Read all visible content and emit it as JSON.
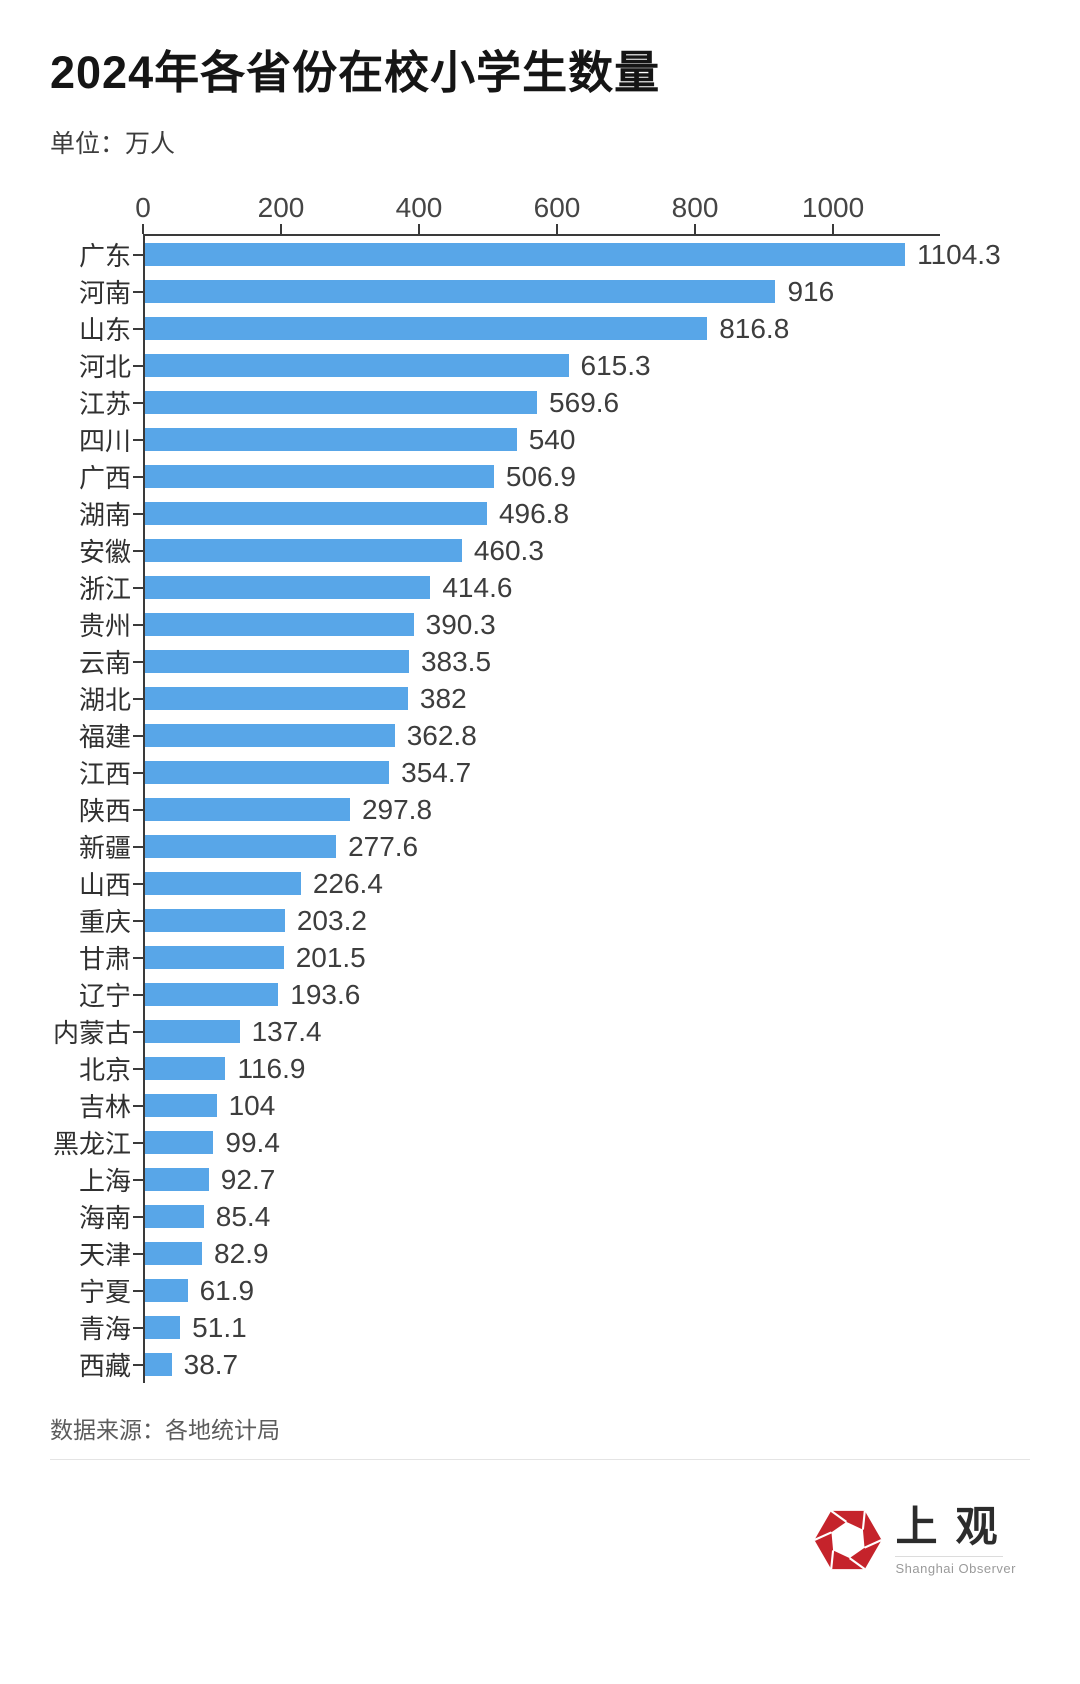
{
  "header": {
    "title": "2024年各省份在校小学生数量",
    "unit_label": "单位：万人"
  },
  "chart_data": {
    "type": "bar",
    "orientation": "horizontal",
    "title": "2024年各省份在校小学生数量",
    "unit": "万人",
    "xlabel": "",
    "ylabel": "",
    "xlim": [
      0,
      1155
    ],
    "x_ticks": [
      0,
      200,
      400,
      600,
      800,
      1000
    ],
    "grid": false,
    "legend": "none",
    "bar_color": "#58a6e8",
    "axis_color": "#3a3a3a",
    "categories": [
      "广东",
      "河南",
      "山东",
      "河北",
      "江苏",
      "四川",
      "广西",
      "湖南",
      "安徽",
      "浙江",
      "贵州",
      "云南",
      "湖北",
      "福建",
      "江西",
      "陕西",
      "新疆",
      "山西",
      "重庆",
      "甘肃",
      "辽宁",
      "内蒙古",
      "北京",
      "吉林",
      "黑龙江",
      "上海",
      "海南",
      "天津",
      "宁夏",
      "青海",
      "西藏"
    ],
    "values": [
      1104.3,
      916,
      816.8,
      615.3,
      569.6,
      540,
      506.9,
      496.8,
      460.3,
      414.6,
      390.3,
      383.5,
      382,
      362.8,
      354.7,
      297.8,
      277.6,
      226.4,
      203.2,
      201.5,
      193.6,
      137.4,
      116.9,
      104,
      99.4,
      92.7,
      85.4,
      82.9,
      61.9,
      51.1,
      38.7
    ],
    "value_labels": [
      "1104.3",
      "916",
      "816.8",
      "615.3",
      "569.6",
      "540",
      "506.9",
      "496.8",
      "460.3",
      "414.6",
      "390.3",
      "383.5",
      "382",
      "362.8",
      "354.7",
      "297.8",
      "277.6",
      "226.4",
      "203.2",
      "201.5",
      "193.6",
      "137.4",
      "116.9",
      "104",
      "99.4",
      "92.7",
      "85.4",
      "82.9",
      "61.9",
      "51.1",
      "38.7"
    ]
  },
  "footer": {
    "source": "数据来源：各地统计局"
  },
  "logo": {
    "name_cn": "上观",
    "name_en": "Shanghai Observer",
    "accent_color": "#c5232b"
  }
}
